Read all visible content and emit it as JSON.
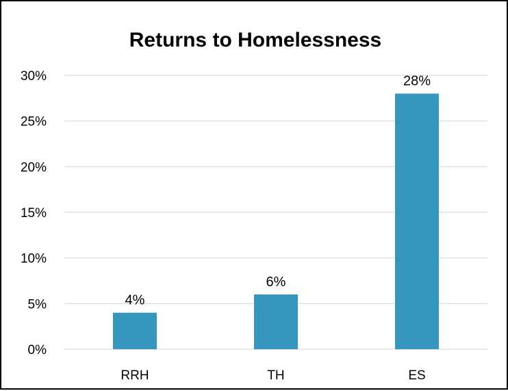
{
  "chart_data": {
    "type": "bar",
    "title": "Returns to Homelessness",
    "categories": [
      "RRH",
      "TH",
      "ES"
    ],
    "values": [
      4,
      6,
      28
    ],
    "data_labels": [
      "4%",
      "6%",
      "28%"
    ],
    "ylim": [
      0,
      30
    ],
    "yticks": [
      0,
      5,
      10,
      15,
      20,
      25,
      30
    ],
    "ytick_labels": [
      "0%",
      "5%",
      "10%",
      "15%",
      "20%",
      "25%",
      "30%"
    ],
    "xlabel": "",
    "ylabel": "",
    "grid": true,
    "legend": "none",
    "bar_color": "#3796BD",
    "grid_color": "#D9D9D9"
  }
}
